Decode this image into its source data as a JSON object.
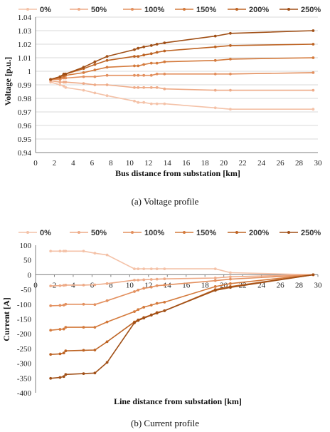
{
  "colors": {
    "0%": "#f4c2a8",
    "50%": "#eeab88",
    "100%": "#e3905f",
    "150%": "#d47a3c",
    "200%": "#bd6323",
    "250%": "#a04f16",
    "grid": "#d9d9d9",
    "axis": "#7f7f7f"
  },
  "chart_data": [
    {
      "type": "line",
      "caption": "(a)  Voltage profile",
      "xlabel": "Bus distance from substation [km]",
      "ylabel": "Voltage [p.u.]",
      "xlim": [
        0,
        30
      ],
      "ylim": [
        0.94,
        1.04
      ],
      "xticks": [
        0,
        2,
        4,
        6,
        8,
        10,
        12,
        14,
        16,
        18,
        20,
        22,
        24,
        26,
        28,
        30
      ],
      "yticks": [
        0.94,
        0.95,
        0.96,
        0.97,
        0.98,
        0.99,
        1,
        1.01,
        1.02,
        1.03,
        1.04
      ],
      "ytick_labels": [
        "0.94",
        "0.95",
        "0.96",
        "0.97",
        "0.98",
        "0.99",
        "1",
        "1.01",
        "1.02",
        "1.03",
        "1.04"
      ],
      "grid": "horizontal",
      "legend_position": "top",
      "x": [
        1.6,
        2.6,
        3.0,
        3.2,
        5.1,
        6.3,
        7.6,
        10.5,
        10.9,
        11.5,
        12.3,
        12.9,
        13.7,
        19.1,
        20.7,
        29.5
      ],
      "series": [
        {
          "name": "0%",
          "values": [
            0.992,
            0.99,
            0.989,
            0.988,
            0.986,
            0.984,
            0.982,
            0.978,
            0.977,
            0.977,
            0.976,
            0.976,
            0.976,
            0.973,
            0.972,
            0.972
          ]
        },
        {
          "name": "50%",
          "values": [
            0.993,
            0.992,
            0.992,
            0.992,
            0.991,
            0.99,
            0.99,
            0.988,
            0.988,
            0.988,
            0.988,
            0.988,
            0.987,
            0.986,
            0.986,
            0.986
          ]
        },
        {
          "name": "100%",
          "values": [
            0.994,
            0.994,
            0.995,
            0.995,
            0.996,
            0.996,
            0.997,
            0.997,
            0.997,
            0.997,
            0.997,
            0.998,
            0.998,
            0.998,
            0.998,
            0.999
          ]
        },
        {
          "name": "150%",
          "values": [
            0.994,
            0.995,
            0.996,
            0.997,
            0.999,
            1.001,
            1.003,
            1.004,
            1.004,
            1.005,
            1.006,
            1.006,
            1.007,
            1.008,
            1.009,
            1.01
          ]
        },
        {
          "name": "200%",
          "values": [
            0.994,
            0.996,
            0.997,
            0.998,
            1.002,
            1.005,
            1.008,
            1.011,
            1.011,
            1.012,
            1.013,
            1.014,
            1.015,
            1.018,
            1.019,
            1.02
          ]
        },
        {
          "name": "250%",
          "values": [
            0.994,
            0.996,
            0.998,
            0.998,
            1.003,
            1.007,
            1.011,
            1.016,
            1.017,
            1.018,
            1.019,
            1.02,
            1.021,
            1.026,
            1.028,
            1.03
          ]
        }
      ]
    },
    {
      "type": "line",
      "caption": "(b)  Current profile",
      "xlabel": "Line distance from substation [km]",
      "ylabel": "Current [A]",
      "xlim": [
        0,
        30
      ],
      "ylim": [
        -400,
        100
      ],
      "xticks": [
        0,
        2,
        4,
        6,
        8,
        10,
        12,
        14,
        16,
        18,
        20,
        22,
        24,
        26,
        28,
        30
      ],
      "yticks": [
        -400,
        -350,
        -300,
        -250,
        -200,
        -150,
        -100,
        -50,
        0,
        50,
        100
      ],
      "ytick_labels": [
        "-400",
        "-350",
        "-300",
        "-250",
        "-200",
        "-150",
        "-100",
        "-50",
        "0",
        "50",
        "100"
      ],
      "grid": "none",
      "legend_position": "top",
      "x": [
        1.6,
        2.6,
        3.0,
        3.2,
        5.1,
        6.3,
        7.6,
        10.5,
        10.9,
        11.5,
        12.3,
        12.9,
        13.7,
        19.1,
        20.7,
        29.5
      ],
      "series": [
        {
          "name": "0%",
          "values": [
            80,
            80,
            80,
            80,
            80,
            73,
            67,
            20,
            20,
            20,
            20,
            20,
            20,
            20,
            7,
            0
          ]
        },
        {
          "name": "50%",
          "values": [
            -38,
            -37,
            -36,
            -35,
            -35,
            -34,
            -30,
            -18,
            -18,
            -17,
            -16,
            -15,
            -14,
            -11,
            -7,
            0
          ]
        },
        {
          "name": "100%",
          "values": [
            -105,
            -104,
            -103,
            -100,
            -100,
            -101,
            -88,
            -57,
            -52,
            -46,
            -42,
            -37,
            -35,
            -20,
            -15,
            0
          ]
        },
        {
          "name": "150%",
          "values": [
            -188,
            -185,
            -184,
            -178,
            -178,
            -178,
            -160,
            -125,
            -118,
            -110,
            -103,
            -97,
            -93,
            -40,
            -30,
            0
          ]
        },
        {
          "name": "200%",
          "values": [
            -270,
            -268,
            -265,
            -258,
            -256,
            -255,
            -227,
            -160,
            -153,
            -145,
            -136,
            -128,
            -122,
            -50,
            -40,
            0
          ]
        },
        {
          "name": "250%",
          "values": [
            -351,
            -348,
            -345,
            -338,
            -335,
            -333,
            -297,
            -163,
            -155,
            -147,
            -137,
            -130,
            -122,
            -53,
            -43,
            0
          ]
        }
      ]
    }
  ]
}
